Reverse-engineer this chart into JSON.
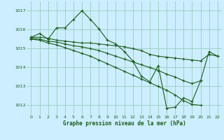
{
  "bg_color": "#cceeff",
  "grid_color": "#99ccbb",
  "line_color": "#1a5c1a",
  "xlabel": "Graphe pression niveau de la mer (hPa)",
  "ylim": [
    1011.5,
    1017.5
  ],
  "xlim": [
    -0.5,
    22.5
  ],
  "yticks": [
    1012,
    1013,
    1014,
    1015,
    1016,
    1017
  ],
  "xticks": [
    0,
    1,
    2,
    3,
    4,
    5,
    6,
    7,
    8,
    9,
    10,
    11,
    12,
    13,
    14,
    15,
    16,
    17,
    18,
    19,
    20,
    21,
    22
  ],
  "series": [
    {
      "x": [
        0,
        1,
        2,
        3,
        4,
        5,
        6,
        7,
        8,
        9,
        10,
        11,
        12,
        13,
        14,
        15,
        16,
        17,
        18,
        19,
        20,
        21,
        22
      ],
      "y": [
        1015.6,
        1015.8,
        1015.5,
        1016.1,
        1016.1,
        1016.55,
        1017.0,
        1016.55,
        1016.05,
        1015.45,
        1015.25,
        1014.85,
        1014.35,
        1013.55,
        1013.25,
        1014.1,
        1011.85,
        1011.9,
        1012.4,
        1012.2,
        1013.3,
        1014.85,
        1014.6
      ]
    },
    {
      "x": [
        0,
        1,
        2,
        3,
        4,
        5,
        6,
        7,
        8,
        9,
        10,
        11,
        12,
        13,
        14,
        15,
        16,
        17,
        18,
        19,
        20,
        21,
        22
      ],
      "y": [
        1015.6,
        1015.6,
        1015.55,
        1015.45,
        1015.4,
        1015.35,
        1015.3,
        1015.3,
        1015.25,
        1015.2,
        1015.15,
        1015.1,
        1015.0,
        1014.9,
        1014.7,
        1014.6,
        1014.55,
        1014.5,
        1014.45,
        1014.4,
        1014.35,
        1014.7,
        1014.6
      ]
    },
    {
      "x": [
        0,
        1,
        2,
        3,
        4,
        5,
        6,
        7,
        8,
        9,
        10,
        11,
        12,
        13,
        14,
        15,
        16,
        17,
        18,
        19,
        20,
        21,
        22
      ],
      "y": [
        1015.55,
        1015.5,
        1015.4,
        1015.35,
        1015.25,
        1015.15,
        1015.1,
        1015.0,
        1014.9,
        1014.75,
        1014.6,
        1014.45,
        1014.3,
        1014.15,
        1014.0,
        1013.85,
        1013.65,
        1013.5,
        1013.3,
        1013.15,
        1013.3,
        null,
        null
      ]
    },
    {
      "x": [
        0,
        1,
        2,
        3,
        4,
        5,
        6,
        7,
        8,
        9,
        10,
        11,
        12,
        13,
        14,
        15,
        16,
        17,
        18,
        19,
        20,
        21,
        22
      ],
      "y": [
        1015.5,
        1015.45,
        1015.3,
        1015.2,
        1015.05,
        1014.9,
        1014.75,
        1014.6,
        1014.4,
        1014.2,
        1014.0,
        1013.8,
        1013.6,
        1013.4,
        1013.2,
        1013.0,
        1012.8,
        1012.55,
        1012.25,
        1012.05,
        1012.0,
        null,
        null
      ]
    }
  ]
}
